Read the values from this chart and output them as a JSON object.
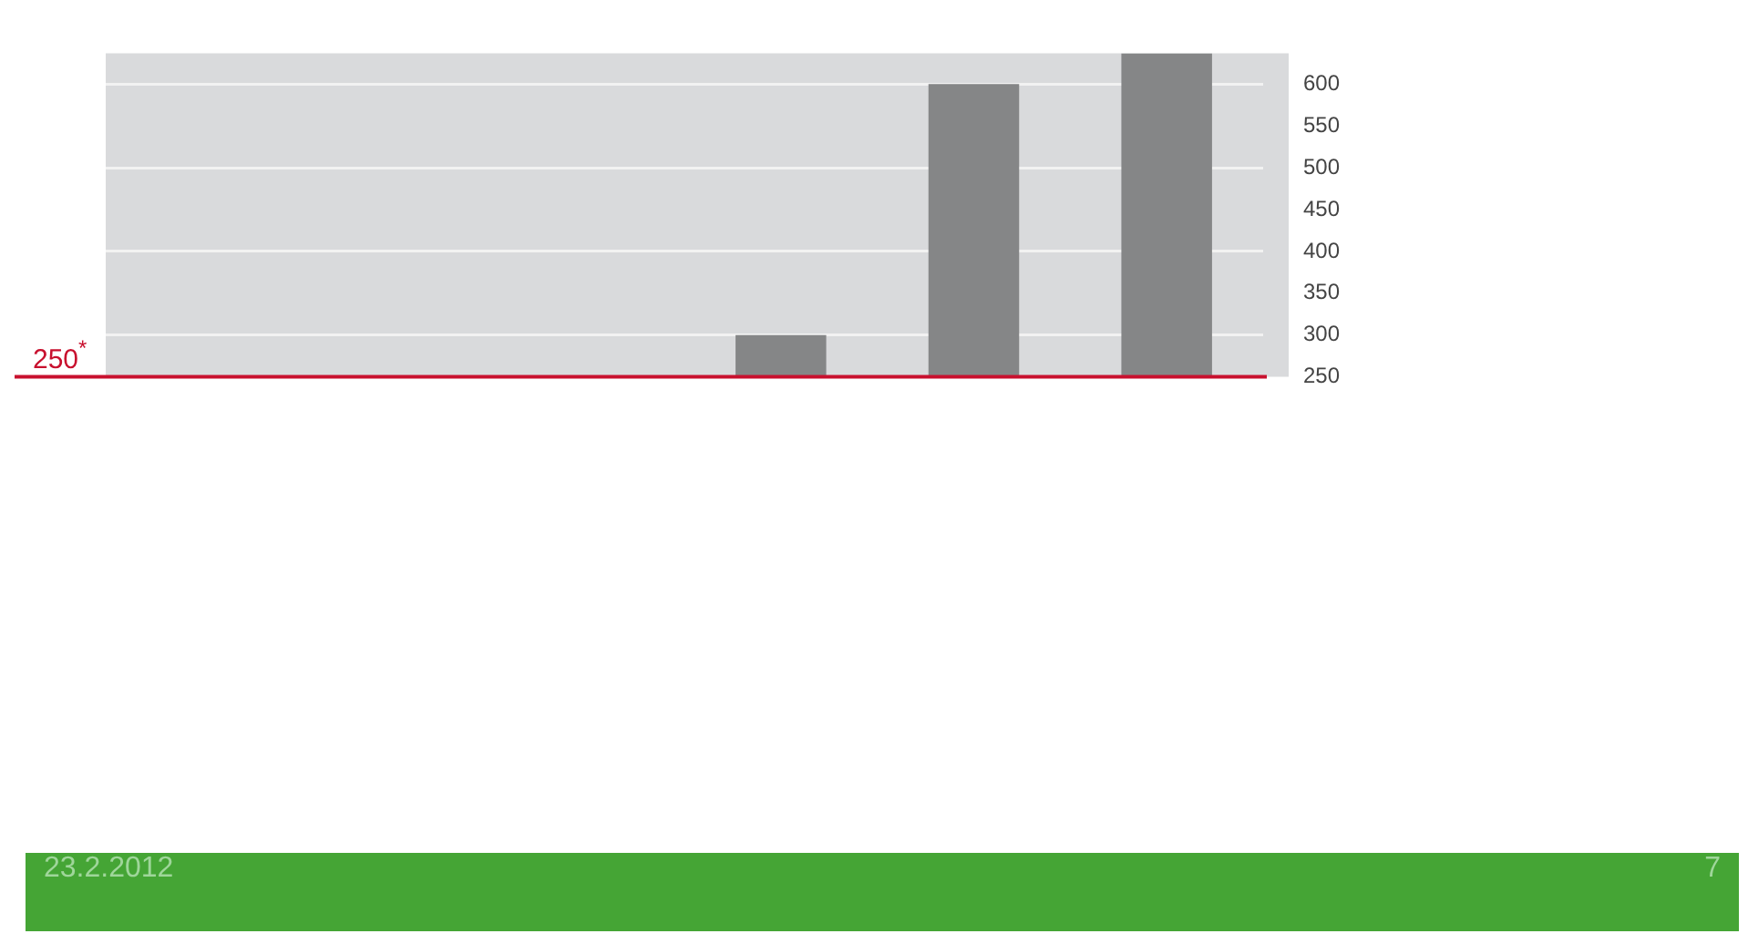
{
  "chart_data": {
    "type": "bar",
    "categories": [
      null,
      null,
      null,
      null,
      null,
      null
    ],
    "values": [
      null,
      null,
      null,
      300,
      600,
      637
    ],
    "color": "#858687",
    "ylim": [
      250,
      637
    ],
    "yticks": [
      250,
      300,
      350,
      400,
      450,
      500,
      550,
      600
    ],
    "grid": "y",
    "ref_lines": [
      {
        "axis": "y",
        "value": 250,
        "label": "250$^{*}$",
        "color": "#c8102e"
      }
    ],
    "annotations": [
      "23.2.2012",
      "7"
    ]
  }
}
